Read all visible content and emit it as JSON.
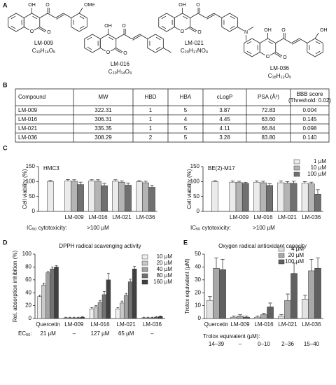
{
  "panel_labels": [
    "A",
    "B",
    "C",
    "D",
    "E"
  ],
  "structures": [
    {
      "name": "LM-009",
      "formula": "C19H14O5",
      "atoms": [
        "OH",
        "O",
        "O",
        "O",
        "OMe"
      ]
    },
    {
      "name": "LM-016",
      "formula": "C19H14O4",
      "atoms": [
        "OH",
        "O",
        "O",
        "O"
      ]
    },
    {
      "name": "LM-021",
      "formula": "C20H17NO4",
      "atoms": [
        "OH",
        "O",
        "O",
        "O",
        "N"
      ]
    },
    {
      "name": "LM-036",
      "formula": "C18H12O5",
      "atoms": [
        "OH",
        "O",
        "O",
        "O",
        "OH"
      ]
    }
  ],
  "table": {
    "header": [
      "Compound",
      "MW",
      "HBD",
      "HBA",
      "cLogP",
      "PSA (Å²)",
      "BBB score"
    ],
    "header_note": "(Threshold: 0.02)",
    "rows": [
      [
        "LM-009",
        "322.31",
        "1",
        "5",
        "3.87",
        "72.83",
        "0.004"
      ],
      [
        "LM-016",
        "306.31",
        "1",
        "4",
        "4.45",
        "63.60",
        "0.145"
      ],
      [
        "LM-021",
        "335.35",
        "1",
        "5",
        "4.11",
        "66.84",
        "0.098"
      ],
      [
        "LM-036",
        "308.29",
        "2",
        "5",
        "3.28",
        "83.80",
        "0.140"
      ]
    ]
  },
  "chart_data": [
    {
      "type": "bar",
      "title": "HMC3",
      "y_label": "Cell viability (%)",
      "categories": [
        null,
        "LM-009",
        "LM-016",
        "LM-021",
        "LM-036"
      ],
      "series": [
        {
          "name": "1 µM",
          "color": "#ebebeb",
          "values": [
            100,
            102,
            102,
            101,
            99
          ],
          "errors": [
            4,
            5,
            4,
            5,
            4
          ]
        },
        {
          "name": "10 µM",
          "color": "#b4b4b4",
          "values": [
            null,
            101,
            101,
            98,
            96
          ],
          "errors": [
            null,
            5,
            5,
            4,
            5
          ]
        },
        {
          "name": "100 µM",
          "color": "#707070",
          "values": [
            null,
            90,
            86,
            88,
            81
          ],
          "errors": [
            null,
            8,
            8,
            7,
            6
          ]
        }
      ],
      "ylim": [
        0,
        150
      ],
      "yticks": [
        0,
        50,
        100,
        150
      ],
      "note_label": "IC50 cytotoxicity:",
      "note_values": [
        ">100 µM"
      ]
    },
    {
      "type": "bar",
      "title": "BE(2)-M17",
      "y_label": "Cell viability (%)",
      "categories": [
        null,
        "LM-009",
        "LM-016",
        "LM-021",
        "LM-036"
      ],
      "series": [
        {
          "name": "1 µM",
          "color": "#ebebeb",
          "values": [
            100,
            98,
            98,
            96,
            95
          ],
          "errors": [
            3,
            4,
            4,
            6,
            5
          ]
        },
        {
          "name": "10 µM",
          "color": "#b4b4b4",
          "values": [
            null,
            97,
            96,
            95,
            92
          ],
          "errors": [
            null,
            4,
            5,
            5,
            6
          ]
        },
        {
          "name": "100 µM",
          "color": "#707070",
          "values": [
            null,
            94,
            87,
            94,
            58
          ],
          "errors": [
            null,
            3,
            6,
            7,
            15
          ]
        }
      ],
      "ylim": [
        0,
        150
      ],
      "yticks": [
        0,
        50,
        100,
        150
      ],
      "legend": "top-right",
      "note_label": "IC50 cytotoxicity:",
      "note_values": [
        ">100 µM"
      ]
    },
    {
      "type": "bar",
      "title": "DPPH radical scavenging activity",
      "y_label": "Rel. absorption inhibition (%)",
      "categories": [
        "Quercetin",
        "LM-009",
        "LM-016",
        "LM-021",
        "LM-036"
      ],
      "series": [
        {
          "name": "10 µM",
          "color": "#efefef",
          "values": [
            34,
            1,
            15,
            15,
            1
          ],
          "errors": [
            2,
            1,
            2,
            2,
            1
          ]
        },
        {
          "name": "20 µM",
          "color": "#cacaca",
          "values": [
            52,
            1,
            18,
            24,
            1
          ],
          "errors": [
            3,
            1,
            2,
            3,
            1
          ]
        },
        {
          "name": "40 µM",
          "color": "#a2a2a2",
          "values": [
            71,
            1,
            25,
            36,
            1
          ],
          "errors": [
            2,
            1,
            3,
            3,
            1
          ]
        },
        {
          "name": "80 µM",
          "color": "#727272",
          "values": [
            77,
            1,
            37,
            57,
            2
          ],
          "errors": [
            3,
            1,
            5,
            4,
            1
          ]
        },
        {
          "name": "160 µM",
          "color": "#404040",
          "values": [
            80,
            2,
            60,
            77,
            3
          ],
          "errors": [
            2,
            1,
            10,
            4,
            1
          ]
        }
      ],
      "ylim": [
        0,
        100
      ],
      "yticks": [
        0,
        20,
        40,
        60,
        80,
        100
      ],
      "legend": "top-right",
      "note_label": "EC50:",
      "note_values": [
        "21 µM",
        "–",
        "127 µM",
        "65 µM",
        "–"
      ]
    },
    {
      "type": "bar",
      "title": "Oxygen radical antioxidant capacity",
      "y_label": "Trolox equivalent (µM)",
      "categories": [
        "Quercetin",
        "LM-009",
        "LM-016",
        "LM-021",
        "LM-036"
      ],
      "series": [
        {
          "name": "4 µM",
          "color": "#e2e2e2",
          "values": [
            14,
            1,
            1,
            2,
            15
          ],
          "errors": [
            3,
            1,
            1,
            1,
            3
          ]
        },
        {
          "name": "20 µM",
          "color": "#a8a8a8",
          "values": [
            39,
            2,
            3,
            14,
            37
          ],
          "errors": [
            8,
            1,
            1,
            5,
            9
          ]
        },
        {
          "name": "100 µM",
          "color": "#606060",
          "values": [
            38,
            1,
            9,
            35,
            39
          ],
          "errors": [
            8,
            1,
            3,
            8,
            8
          ]
        }
      ],
      "ylim": [
        0,
        50
      ],
      "yticks": [
        0,
        10,
        20,
        30,
        40,
        50
      ],
      "legend": "top-right",
      "note_label": "Trolox equivalent (µM):",
      "note_values": [
        "14–39",
        "–",
        "0–10",
        "2–36",
        "15–40"
      ]
    }
  ]
}
